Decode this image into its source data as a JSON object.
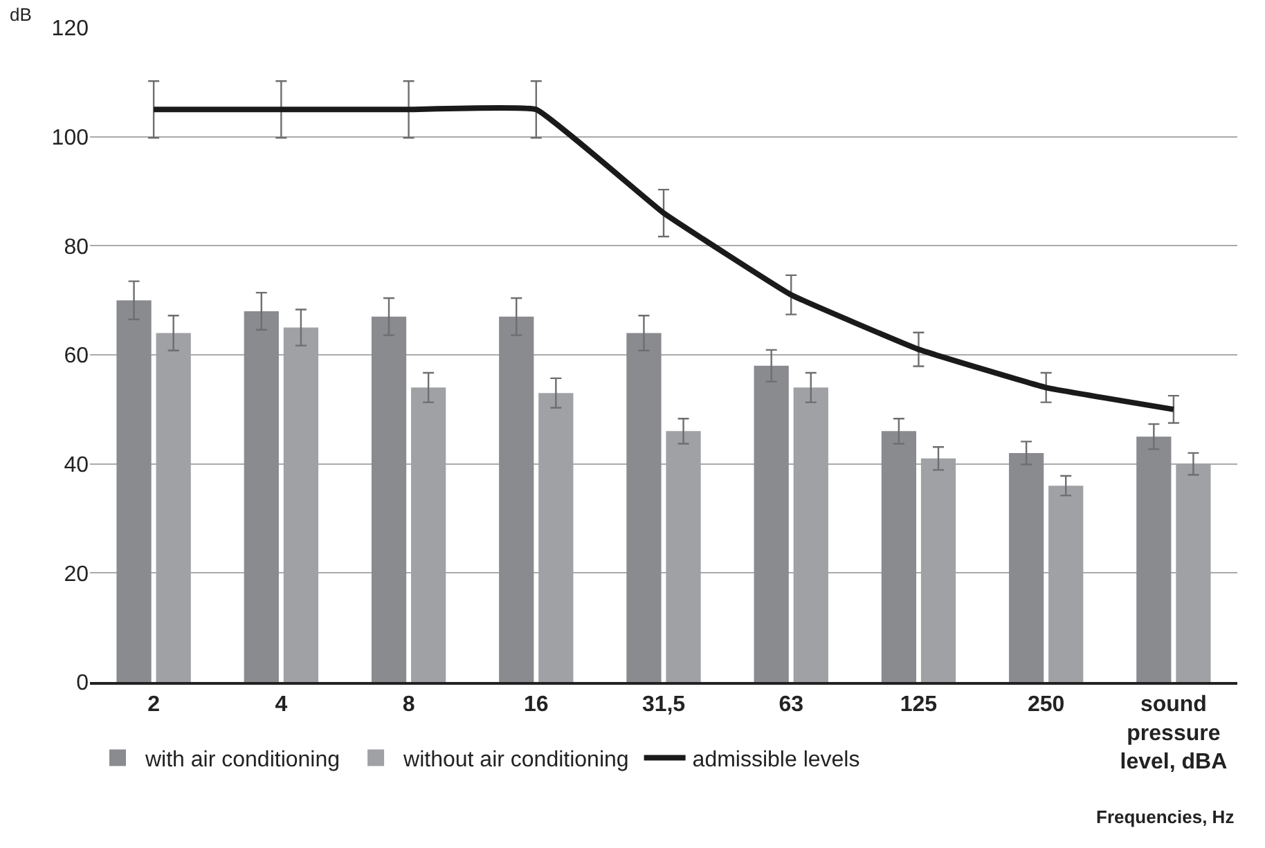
{
  "chart_data": {
    "type": "bar",
    "ylabel": "dB",
    "xlabel": "Frequencies, Hz",
    "categories": [
      "2",
      "4",
      "8",
      "16",
      "31,5",
      "63",
      "125",
      "250",
      "sound pressure level, dBA"
    ],
    "series": [
      {
        "name": "with air conditioning",
        "color": "#8a8b8f",
        "values": [
          70,
          68,
          67,
          67,
          64,
          58,
          46,
          42,
          45
        ],
        "errors": [
          3.5,
          3.4,
          3.4,
          3.4,
          3.2,
          2.9,
          2.3,
          2.1,
          2.3
        ]
      },
      {
        "name": "without air conditioning",
        "color": "#a0a1a5",
        "values": [
          64,
          65,
          54,
          53,
          46,
          54,
          41,
          36,
          40
        ],
        "errors": [
          3.2,
          3.3,
          2.7,
          2.7,
          2.3,
          2.7,
          2.1,
          1.8,
          2
        ]
      },
      {
        "name": "admissible levels",
        "type": "line",
        "color": "#1a1a1a",
        "values": [
          105,
          105,
          105,
          105,
          86,
          71,
          61,
          54,
          50
        ],
        "errors": [
          5.2,
          5.2,
          5.2,
          5.2,
          4.3,
          3.6,
          3.1,
          2.7,
          2.5
        ]
      }
    ],
    "ylim": [
      0,
      120
    ],
    "yticks": [
      0,
      20,
      40,
      60,
      80,
      100,
      120
    ],
    "grid": "y",
    "legend": "bottom",
    "marker": "none",
    "line_style": "solid"
  }
}
